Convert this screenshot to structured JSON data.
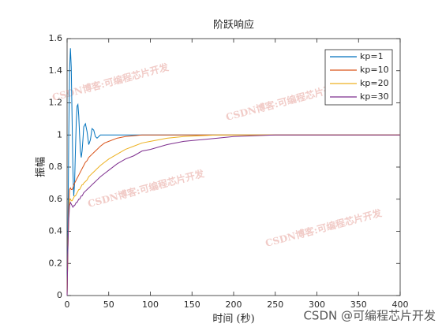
{
  "chart_data": {
    "type": "line",
    "title": "阶跃响应",
    "xlabel": "时间 (秒)",
    "ylabel": "振幅",
    "x": [
      0,
      1,
      2,
      3,
      4,
      5,
      6,
      7,
      8,
      9,
      10,
      11,
      12,
      13,
      14,
      15,
      16,
      17,
      18,
      19,
      20,
      22,
      24,
      26,
      28,
      30,
      32,
      34,
      36,
      40,
      45,
      50,
      60,
      70,
      80,
      90,
      100,
      120,
      140,
      160,
      180,
      200,
      225,
      250,
      300,
      350,
      400
    ],
    "series": [
      {
        "name": "kp=1",
        "color": "#0072bd",
        "values": [
          0,
          0.4,
          1.0,
          1.4,
          1.54,
          1.42,
          1.1,
          0.78,
          0.62,
          0.7,
          0.9,
          1.08,
          1.18,
          1.19,
          1.12,
          1.0,
          0.9,
          0.86,
          0.9,
          0.97,
          1.05,
          1.07,
          1.02,
          0.94,
          0.97,
          1.04,
          1.03,
          0.99,
          0.98,
          1,
          1,
          1,
          1,
          1,
          1,
          1,
          1,
          1,
          1,
          1,
          1,
          1,
          1,
          1,
          1,
          1,
          1
        ]
      },
      {
        "name": "kp=10",
        "color": "#d95319",
        "values": [
          0,
          0.3,
          0.55,
          0.66,
          0.67,
          0.66,
          0.66,
          0.67,
          0.69,
          0.7,
          0.71,
          0.72,
          0.73,
          0.74,
          0.75,
          0.76,
          0.77,
          0.78,
          0.79,
          0.8,
          0.81,
          0.83,
          0.84,
          0.86,
          0.87,
          0.88,
          0.89,
          0.9,
          0.91,
          0.93,
          0.95,
          0.96,
          0.98,
          0.99,
          0.995,
          1,
          1,
          1,
          1,
          1,
          1,
          1,
          1,
          1,
          1,
          1,
          1
        ]
      },
      {
        "name": "kp=20",
        "color": "#edb120",
        "values": [
          0,
          0.3,
          0.5,
          0.6,
          0.6,
          0.59,
          0.59,
          0.6,
          0.61,
          0.62,
          0.62,
          0.63,
          0.64,
          0.65,
          0.66,
          0.66,
          0.67,
          0.68,
          0.69,
          0.69,
          0.7,
          0.71,
          0.72,
          0.74,
          0.75,
          0.76,
          0.77,
          0.78,
          0.79,
          0.81,
          0.83,
          0.85,
          0.88,
          0.91,
          0.93,
          0.95,
          0.96,
          0.98,
          0.99,
          0.995,
          1,
          1,
          1,
          1,
          1,
          1,
          1
        ]
      },
      {
        "name": "kp=30",
        "color": "#7e2f8e",
        "values": [
          0,
          0.3,
          0.48,
          0.56,
          0.58,
          0.57,
          0.56,
          0.55,
          0.56,
          0.56,
          0.57,
          0.58,
          0.58,
          0.59,
          0.6,
          0.6,
          0.61,
          0.62,
          0.62,
          0.63,
          0.64,
          0.65,
          0.66,
          0.67,
          0.68,
          0.69,
          0.7,
          0.71,
          0.72,
          0.74,
          0.76,
          0.78,
          0.82,
          0.85,
          0.87,
          0.9,
          0.91,
          0.94,
          0.96,
          0.97,
          0.98,
          0.99,
          0.995,
          1,
          1,
          1,
          1
        ]
      }
    ],
    "xlim": [
      0,
      400
    ],
    "xticks": [
      0,
      50,
      100,
      150,
      200,
      250,
      300,
      350,
      400
    ],
    "ylim": [
      0,
      1.6
    ],
    "yticks": [
      0,
      0.2,
      0.4,
      0.6,
      0.8,
      1,
      1.2,
      1.4,
      1.6
    ],
    "grid": false,
    "legend": "upper right",
    "watermarks": [
      "CSDN博客:可编程芯片开发",
      "CSDN博客:可编程芯片开发",
      "CSDN博客:可编程芯片开发",
      "CSDN博客:可编程芯片开发"
    ],
    "footer": "CSDN @可编程芯片开发"
  }
}
